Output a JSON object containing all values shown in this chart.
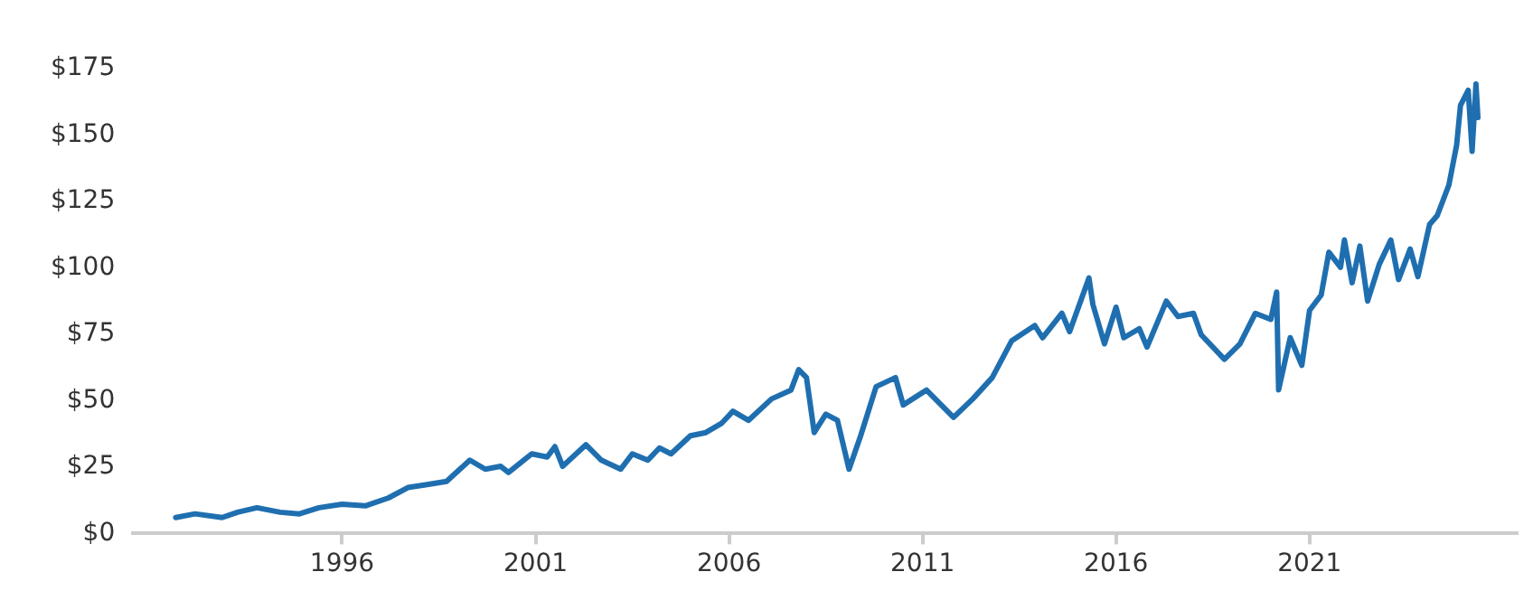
{
  "chart_data": {
    "type": "line",
    "x": [
      1991.7,
      1992.2,
      1992.9,
      1993.3,
      1993.8,
      1994.4,
      1994.9,
      1995.4,
      1996.0,
      1996.6,
      1997.2,
      1997.7,
      1998.2,
      1998.7,
      1999.3,
      1999.7,
      2000.1,
      2000.3,
      2000.9,
      2001.3,
      2001.5,
      2001.7,
      2002.3,
      2002.7,
      2003.2,
      2003.5,
      2003.9,
      2004.2,
      2004.5,
      2005.0,
      2005.4,
      2005.8,
      2006.1,
      2006.5,
      2007.1,
      2007.6,
      2007.8,
      2008.0,
      2008.2,
      2008.5,
      2008.8,
      2009.1,
      2009.4,
      2009.8,
      2010.3,
      2010.5,
      2011.1,
      2011.8,
      2012.3,
      2012.8,
      2013.3,
      2013.9,
      2014.1,
      2014.6,
      2014.8,
      2015.3,
      2015.4,
      2015.7,
      2016.0,
      2016.2,
      2016.6,
      2016.8,
      2017.3,
      2017.6,
      2018.0,
      2018.2,
      2018.8,
      2019.2,
      2019.6,
      2020.0,
      2020.15,
      2020.2,
      2020.5,
      2020.8,
      2021.0,
      2021.3,
      2021.5,
      2021.8,
      2021.9,
      2022.1,
      2022.3,
      2022.5,
      2022.8,
      2023.1,
      2023.3,
      2023.6,
      2023.8,
      2024.1,
      2024.3,
      2024.6,
      2024.8,
      2024.9,
      2025.1,
      2025.2,
      2025.3,
      2025.35
    ],
    "series": [
      {
        "color": "#1f6fb0",
        "values": [
          6,
          7.4,
          6,
          8,
          9.7,
          8,
          7.4,
          9.7,
          11,
          10.4,
          13.4,
          17.3,
          18.4,
          19.6,
          27.6,
          24.2,
          25.3,
          23,
          30,
          28.8,
          32.7,
          25.3,
          33.4,
          27.6,
          24.2,
          30,
          27.6,
          32.2,
          30,
          36.8,
          38,
          41.4,
          46,
          42.6,
          50.7,
          54,
          61.7,
          58.7,
          38,
          44.9,
          42.6,
          24.2,
          36.8,
          55.3,
          58.7,
          48.4,
          54,
          43.7,
          50.7,
          58.7,
          72.5,
          78.3,
          73.7,
          82.9,
          76,
          96.2,
          86.3,
          71.4,
          85.2,
          73.7,
          77.1,
          70.2,
          87.5,
          81.7,
          82.9,
          74.8,
          65.6,
          71.4,
          82.9,
          80.6,
          90.9,
          54.1,
          73.7,
          63.3,
          84,
          89.8,
          105.9,
          100.2,
          110.5,
          94.4,
          108.2,
          87.5,
          101.3,
          110.5,
          95.6,
          107.1,
          96.7,
          116.3,
          119.7,
          131.2,
          146.2,
          161.2,
          166.9,
          143.9,
          169.2,
          156.6
        ]
      }
    ],
    "xlim": [
      1990.6,
      2026.4
    ],
    "xticks": [
      1996,
      2001,
      2006,
      2011,
      2016,
      2021
    ],
    "ylim": [
      0,
      175
    ],
    "yticks": [
      {
        "value": 0,
        "label": "$0"
      },
      {
        "value": 25,
        "label": "$25"
      },
      {
        "value": 50,
        "label": "$50"
      },
      {
        "value": 75,
        "label": "$75"
      },
      {
        "value": 100,
        "label": "$100"
      },
      {
        "value": 125,
        "label": "$125"
      },
      {
        "value": 150,
        "label": "$150"
      },
      {
        "value": 175,
        "label": "$175"
      }
    ],
    "grid": false,
    "legend": false,
    "marker": "none",
    "line_style": "solid"
  }
}
